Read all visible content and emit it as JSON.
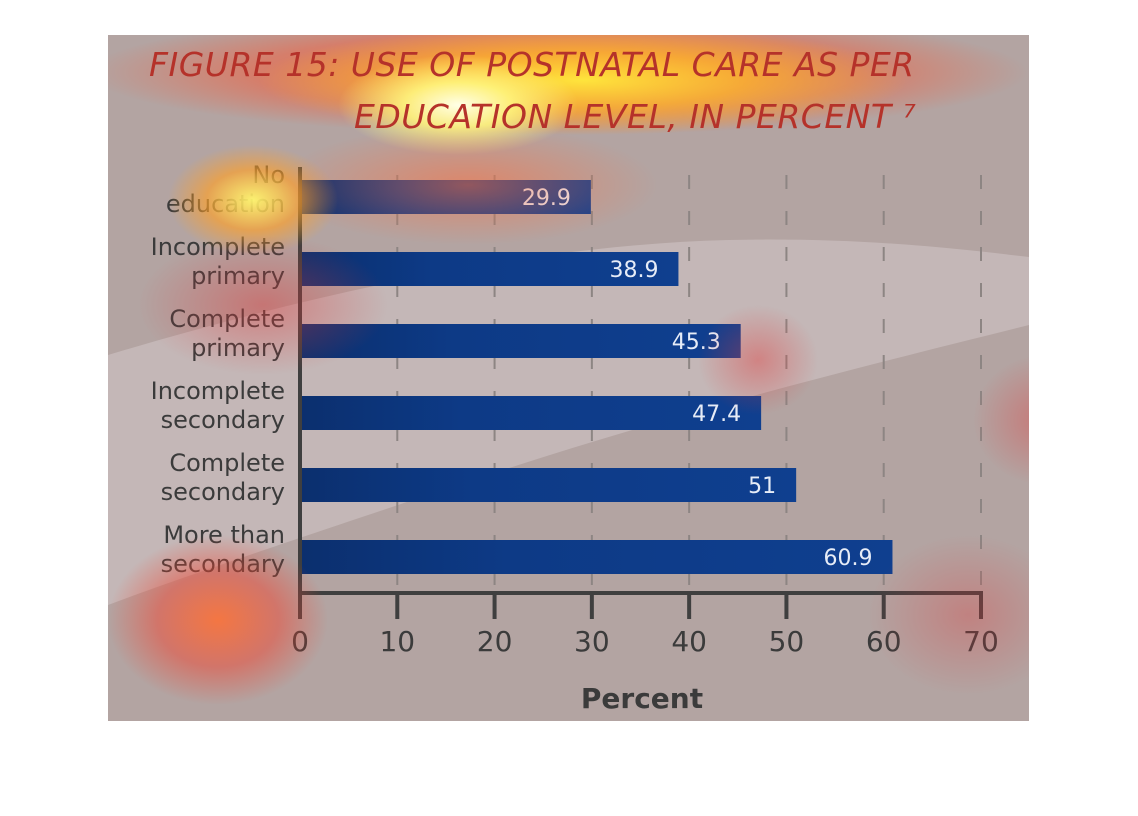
{
  "chart_data": {
    "type": "bar",
    "orientation": "horizontal",
    "title": [
      "FIGURE 15: USE OF POSTNATAL CARE AS PER",
      "EDUCATION LEVEL, IN PERCENT ⁷"
    ],
    "xlabel": "Percent",
    "ylabel": "",
    "categories": [
      [
        "No",
        "education"
      ],
      [
        "Incomplete",
        "primary"
      ],
      [
        "Complete",
        "primary"
      ],
      [
        "Incomplete",
        "secondary"
      ],
      [
        "Complete",
        "secondary"
      ],
      [
        "More than",
        "secondary"
      ]
    ],
    "values": [
      29.9,
      38.9,
      45.3,
      47.4,
      51,
      60.9
    ],
    "value_labels": [
      "29.9",
      "38.9",
      "45.3",
      "47.4",
      "51",
      "60.9"
    ],
    "xlim": [
      0,
      70
    ],
    "xticks": [
      0,
      10,
      20,
      30,
      40,
      50,
      60,
      70
    ],
    "grid": "vertical dashed",
    "colors": {
      "bar": "#0d3a86",
      "bar_label": "#e6ecf7",
      "axis": "#3f3f3f",
      "text": "#3b3b3b",
      "background": "#b3a4a2"
    }
  }
}
